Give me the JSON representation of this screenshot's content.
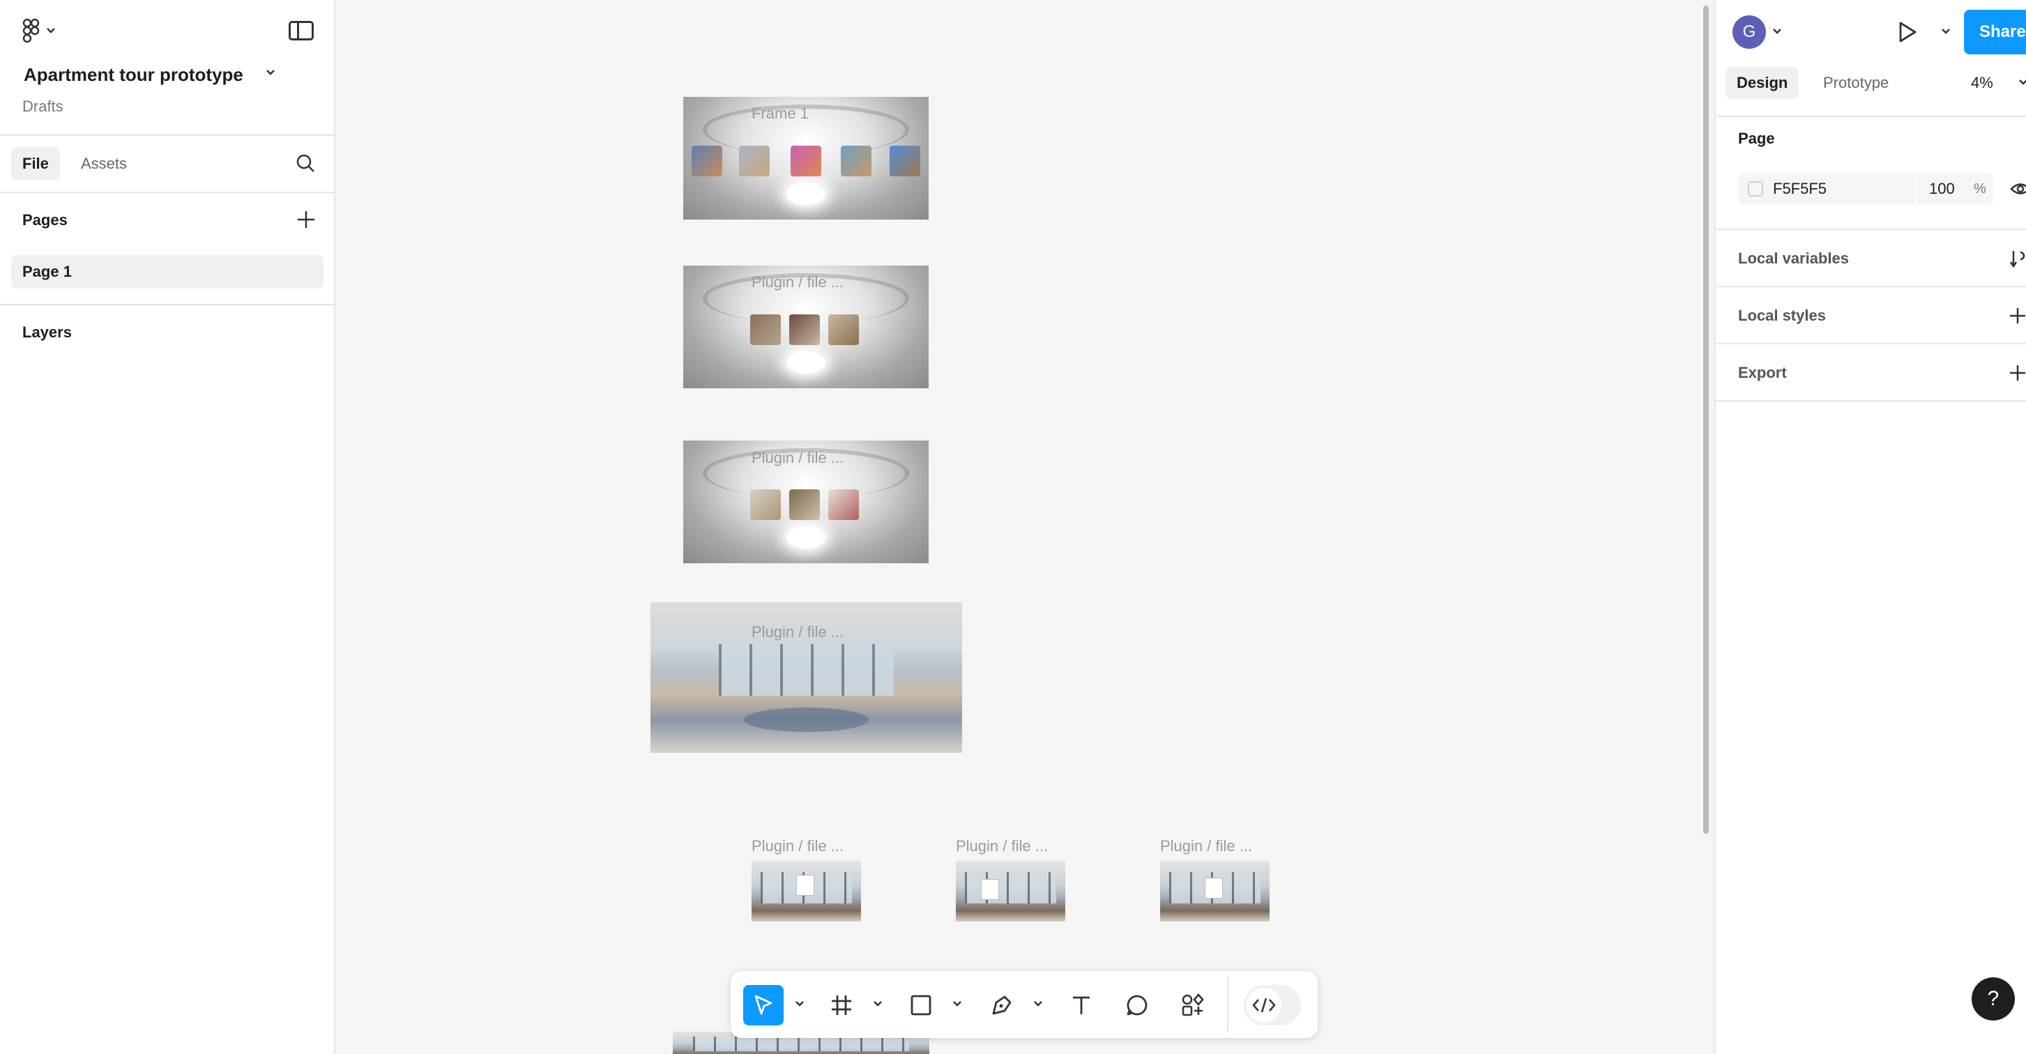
{
  "left_panel": {
    "project_title": "Apartment tour prototype",
    "project_location": "Drafts",
    "tabs": {
      "file": "File",
      "assets": "Assets"
    },
    "pages_header": "Pages",
    "pages": [
      "Page 1"
    ],
    "layers_header": "Layers"
  },
  "canvas": {
    "frames": [
      {
        "label": "Frame 1"
      },
      {
        "label": "Plugin / file ..."
      },
      {
        "label": "Plugin / file ..."
      },
      {
        "label": "Plugin / file ..."
      },
      {
        "label": "Plugin / file ..."
      },
      {
        "label": "Plugin / file ..."
      },
      {
        "label": "Plugin / file ..."
      }
    ],
    "background_color": "#F5F5F5"
  },
  "toolbar": {
    "tools": [
      "move-tool",
      "frame-tool",
      "shape-tool",
      "pen-tool",
      "text-tool",
      "comment-tool",
      "actions-tool",
      "dev-mode-toggle"
    ],
    "active_tool": "move-tool",
    "accent": "#0D99FF"
  },
  "right_panel": {
    "avatar_initial": "G",
    "share_label": "Share",
    "tabs": {
      "design": "Design",
      "prototype": "Prototype"
    },
    "zoom": "4%",
    "page_header": "Page",
    "background": {
      "hex": "F5F5F5",
      "opacity": "100",
      "percent_sign": "%"
    },
    "sections": [
      "Local variables",
      "Local styles",
      "Export"
    ]
  },
  "help_label": "?"
}
